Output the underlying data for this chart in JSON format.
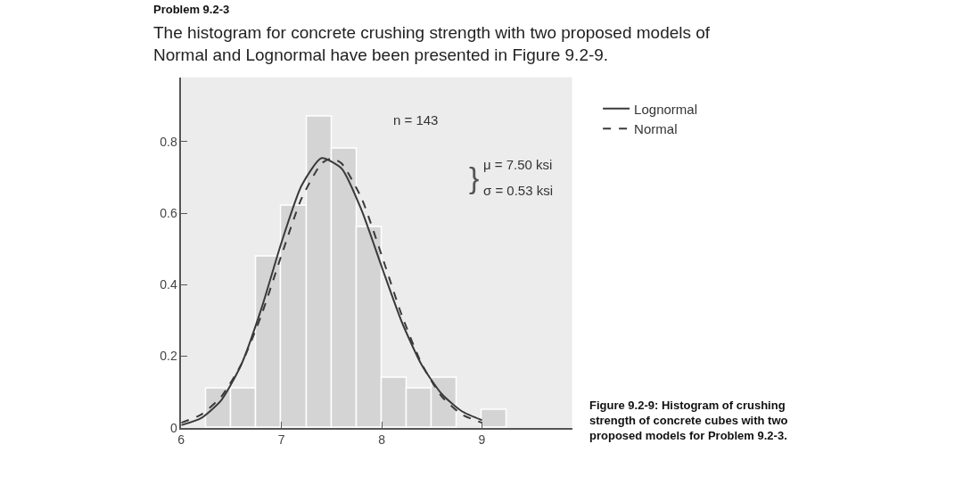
{
  "chart_data": {
    "type": "histogram",
    "title": "Problem 9.2-3",
    "subtitle": "The histogram for concrete crushing strength with two proposed models of Normal and Lognormal have been presented in Figure 9.2-9.",
    "annotations": [
      "n = 143",
      "μ = 7.50 ksi",
      "σ = 0.53 ksi",
      "}",
      "Figure 9.2-9: Histogram of crushing strength of concrete cubes with two proposed models for Problem 9.2-3."
    ],
    "bins": [
      6.25,
      6.5,
      6.75,
      7.0,
      7.25,
      7.5,
      7.75,
      8.0,
      8.25,
      8.5,
      8.75,
      9.0,
      9.25
    ],
    "values": [
      0.11,
      0.11,
      0.48,
      0.62,
      0.87,
      0.78,
      0.56,
      0.14,
      0.11,
      0.14,
      0,
      0.05
    ],
    "color": "#d4d4d4",
    "series": [
      {
        "name": "Lognormal",
        "type": "line",
        "color": "#3a3a3a",
        "line_style": "solid",
        "x": [
          6.0,
          6.2,
          6.4,
          6.6,
          6.8,
          7.0,
          7.2,
          7.4,
          7.6,
          7.8,
          8.0,
          8.2,
          8.4,
          8.6,
          8.8,
          9.0
        ],
        "values": [
          0.007,
          0.027,
          0.077,
          0.177,
          0.333,
          0.518,
          0.677,
          0.754,
          0.725,
          0.608,
          0.45,
          0.296,
          0.175,
          0.094,
          0.046,
          0.021
        ]
      },
      {
        "name": "Normal",
        "type": "line",
        "color": "#3a3a3a",
        "line_style": "dashed",
        "x": [
          6.0,
          6.2,
          6.4,
          6.6,
          6.8,
          7.0,
          7.2,
          7.4,
          7.5,
          7.6,
          7.8,
          8.0,
          8.2,
          8.4,
          8.6,
          8.8,
          9.0
        ],
        "values": [
          0.014,
          0.037,
          0.087,
          0.178,
          0.315,
          0.482,
          0.641,
          0.739,
          0.753,
          0.739,
          0.641,
          0.482,
          0.315,
          0.178,
          0.087,
          0.037,
          0.014
        ]
      }
    ],
    "xlim": [
      6,
      9.9
    ],
    "xticks": [
      6,
      7,
      8,
      9
    ],
    "ylim": [
      0,
      0.98
    ],
    "yticks": [
      0,
      0.2,
      0.4,
      0.6,
      0.8
    ],
    "grid": false,
    "legend": "top right"
  }
}
